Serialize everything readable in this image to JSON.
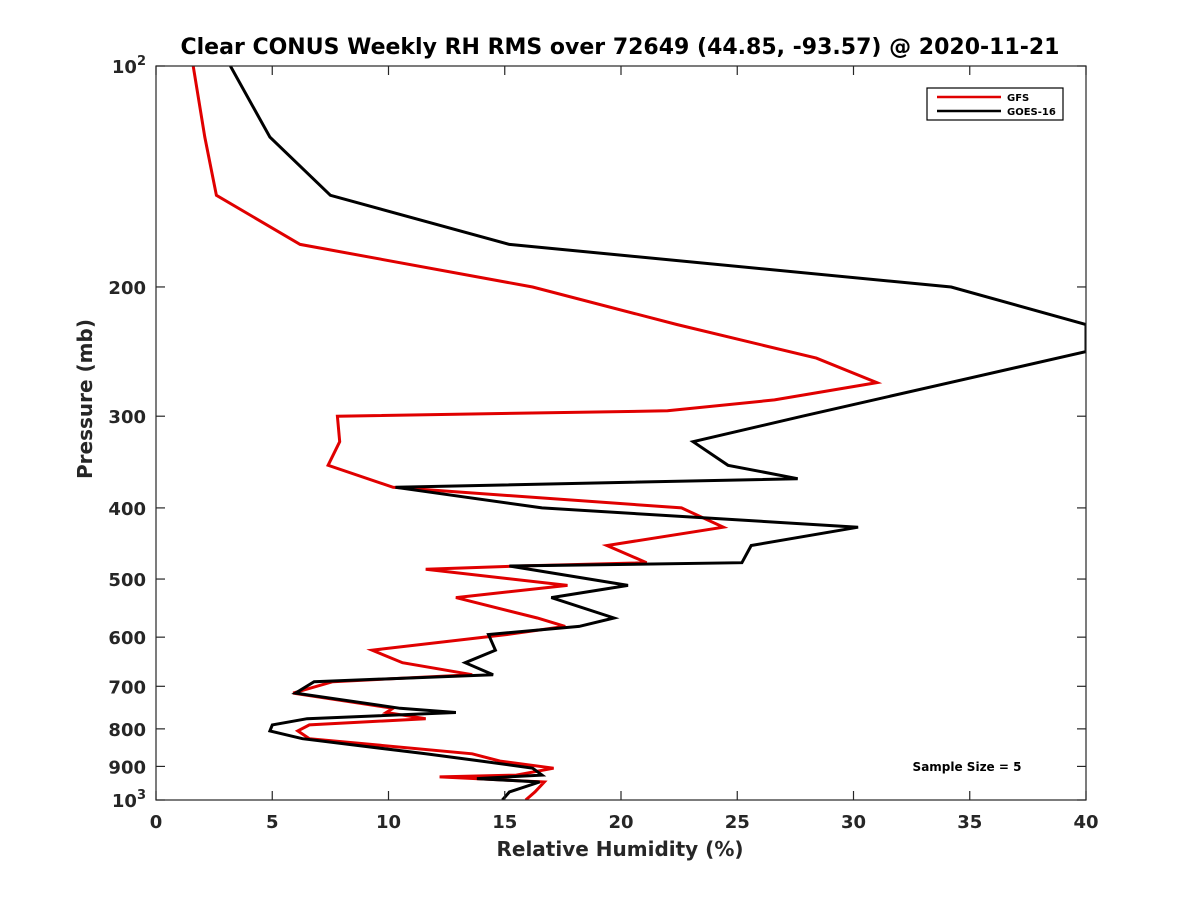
{
  "chart_data": {
    "type": "line",
    "title": "Clear CONUS Weekly RH RMS over 72649 (44.85, -93.57) @ 2020-11-21",
    "xlabel": "Relative Humidity (%)",
    "ylabel": "Pressure (mb)",
    "xlim": [
      0,
      40
    ],
    "ylim": [
      100,
      1000
    ],
    "y_scale": "log",
    "y_direction": "reversed",
    "grid": false,
    "legend_position": "top-right",
    "x_ticks": [
      "0",
      "5",
      "10",
      "15",
      "20",
      "25",
      "30",
      "35",
      "40"
    ],
    "y_ticks": [
      {
        "value": 100,
        "base": "10",
        "exp": "2"
      },
      {
        "value": 200,
        "label": "200"
      },
      {
        "value": 300,
        "label": "300"
      },
      {
        "value": 400,
        "label": "400"
      },
      {
        "value": 500,
        "label": "500"
      },
      {
        "value": 600,
        "label": "600"
      },
      {
        "value": 700,
        "label": "700"
      },
      {
        "value": 800,
        "label": "800"
      },
      {
        "value": 900,
        "label": "900"
      },
      {
        "value": 1000,
        "base": "10",
        "exp": "3"
      }
    ],
    "annotation": "Sample Size = 5",
    "series": [
      {
        "name": "GFS",
        "color": "#e00000",
        "points": [
          [
            1.6,
            100
          ],
          [
            2.1,
            125
          ],
          [
            2.6,
            150
          ],
          [
            6.2,
            175
          ],
          [
            16.2,
            200
          ],
          [
            22.4,
            225
          ],
          [
            28.4,
            250
          ],
          [
            31.0,
            270
          ],
          [
            26.6,
            285
          ],
          [
            22.0,
            295
          ],
          [
            7.8,
            300
          ],
          [
            7.9,
            325
          ],
          [
            7.4,
            350
          ],
          [
            10.2,
            375
          ],
          [
            22.6,
            400
          ],
          [
            24.4,
            425
          ],
          [
            19.4,
            450
          ],
          [
            21.1,
            475
          ],
          [
            15.6,
            480
          ],
          [
            11.6,
            485
          ],
          [
            17.7,
            510
          ],
          [
            12.9,
            530
          ],
          [
            16.4,
            565
          ],
          [
            17.6,
            580
          ],
          [
            15.1,
            595
          ],
          [
            9.3,
            625
          ],
          [
            10.6,
            650
          ],
          [
            13.6,
            675
          ],
          [
            7.6,
            690
          ],
          [
            5.9,
            715
          ],
          [
            10.2,
            750
          ],
          [
            9.9,
            760
          ],
          [
            11.6,
            775
          ],
          [
            6.6,
            790
          ],
          [
            6.1,
            805
          ],
          [
            6.6,
            825
          ],
          [
            13.6,
            865
          ],
          [
            14.8,
            885
          ],
          [
            17.1,
            905
          ],
          [
            15.5,
            925
          ],
          [
            12.2,
            930
          ],
          [
            16.7,
            945
          ],
          [
            16.3,
            975
          ],
          [
            15.9,
            1000
          ]
        ]
      },
      {
        "name": "GOES-16",
        "color": "#000000",
        "points": [
          [
            3.2,
            100
          ],
          [
            4.9,
            125
          ],
          [
            7.5,
            150
          ],
          [
            15.2,
            175
          ],
          [
            34.2,
            200
          ],
          [
            40.0,
            225
          ],
          [
            40.0,
            245
          ],
          [
            27.8,
            300
          ],
          [
            23.1,
            325
          ],
          [
            24.6,
            350
          ],
          [
            27.6,
            365
          ],
          [
            10.3,
            375
          ],
          [
            16.6,
            400
          ],
          [
            30.2,
            425
          ],
          [
            25.6,
            450
          ],
          [
            25.2,
            475
          ],
          [
            15.2,
            480
          ],
          [
            20.3,
            510
          ],
          [
            17.0,
            530
          ],
          [
            19.7,
            565
          ],
          [
            18.2,
            580
          ],
          [
            14.3,
            595
          ],
          [
            14.6,
            625
          ],
          [
            13.3,
            650
          ],
          [
            14.5,
            675
          ],
          [
            6.8,
            690
          ],
          [
            6.0,
            715
          ],
          [
            10.5,
            750
          ],
          [
            12.9,
            760
          ],
          [
            6.5,
            775
          ],
          [
            5.0,
            790
          ],
          [
            4.9,
            805
          ],
          [
            6.3,
            825
          ],
          [
            11.6,
            865
          ],
          [
            14.0,
            885
          ],
          [
            16.2,
            905
          ],
          [
            16.6,
            925
          ],
          [
            13.8,
            935
          ],
          [
            16.5,
            945
          ],
          [
            15.2,
            975
          ],
          [
            14.9,
            1000
          ]
        ]
      }
    ]
  }
}
